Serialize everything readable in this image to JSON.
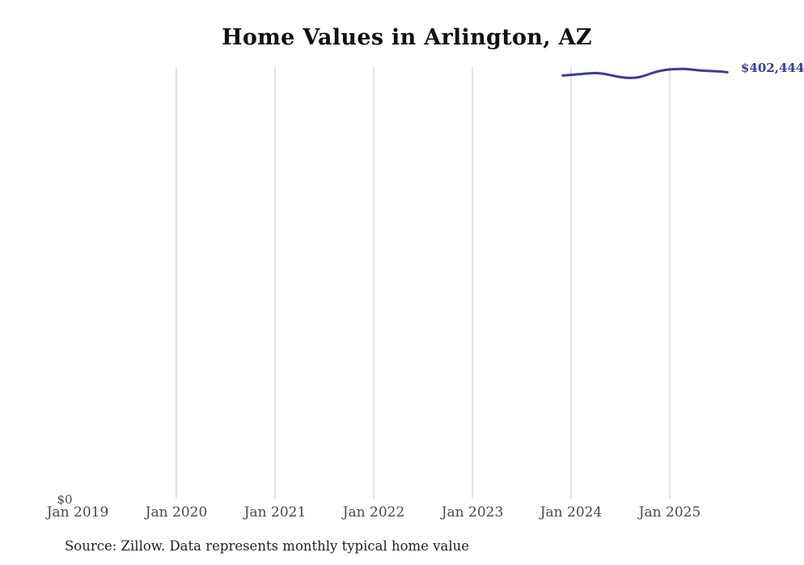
{
  "title": "Home Values in Arlington, AZ",
  "source_note": "Source: Zillow. Data represents monthly typical home value",
  "y_axis": {
    "zero_label": "$0"
  },
  "end_value_label": "$402,444",
  "colors": {
    "line": "#3b3b99",
    "value_label": "#3b3b99",
    "grid": "#c9c9c9",
    "tick_text": "#4a4a4a",
    "title_text": "#111111",
    "source_text": "#222222",
    "background": "#ffffff"
  },
  "chart_data": {
    "type": "line",
    "title": "Home Values in Arlington, AZ",
    "xlabel": "",
    "ylabel": "",
    "y_min": 0,
    "grid": "vertical-only",
    "legend": "none",
    "x_tick_labels": [
      "Jan 2019",
      "Jan 2020",
      "Jan 2021",
      "Jan 2022",
      "Jan 2023",
      "Jan 2024",
      "Jan 2025"
    ],
    "x_gridline_years": [
      2020,
      2021,
      2022,
      2023,
      2024,
      2025
    ],
    "end_label": "$402,444",
    "series": [
      {
        "name": "Monthly typical home value",
        "points": [
          {
            "month": "2023-12",
            "value": 399400
          },
          {
            "month": "2024-01",
            "value": 400000
          },
          {
            "month": "2024-02",
            "value": 400600
          },
          {
            "month": "2024-03",
            "value": 401300
          },
          {
            "month": "2024-04",
            "value": 401700
          },
          {
            "month": "2024-05",
            "value": 400900
          },
          {
            "month": "2024-06",
            "value": 399400
          },
          {
            "month": "2024-07",
            "value": 397900
          },
          {
            "month": "2024-08",
            "value": 397100
          },
          {
            "month": "2024-09",
            "value": 397500
          },
          {
            "month": "2024-10",
            "value": 399400
          },
          {
            "month": "2024-11",
            "value": 402100
          },
          {
            "month": "2024-12",
            "value": 404000
          },
          {
            "month": "2025-01",
            "value": 405100
          },
          {
            "month": "2025-02",
            "value": 405500
          },
          {
            "month": "2025-03",
            "value": 405500
          },
          {
            "month": "2025-04",
            "value": 404700
          },
          {
            "month": "2025-05",
            "value": 404000
          },
          {
            "month": "2025-06",
            "value": 403600
          },
          {
            "month": "2025-07",
            "value": 403200
          },
          {
            "month": "2025-08",
            "value": 402444
          }
        ]
      }
    ]
  }
}
